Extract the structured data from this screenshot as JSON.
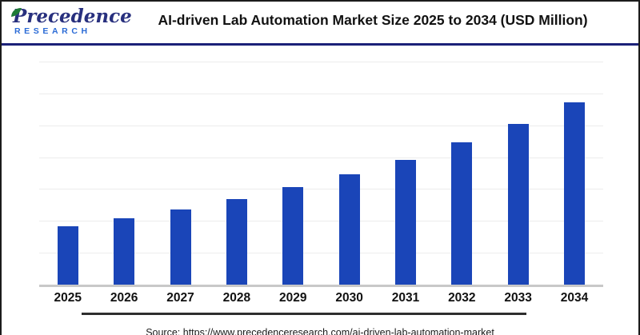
{
  "header": {
    "logo": {
      "brand_primary": "Precedence",
      "brand_secondary": "RESEARCH"
    },
    "title": "AI-driven Lab Automation Market Size 2025 to 2034 (USD Million)"
  },
  "footer": {
    "source_text": "Source: https://www.precedenceresearch.com/ai-driven-lab-automation-market"
  },
  "colors": {
    "bar": "#1a45b8",
    "brand_navy": "#28307e",
    "brand_blue": "#2b6bd6",
    "leaf_green": "#1e7a36",
    "header_rule_navy": "#1b2178",
    "gridline": "#ececec",
    "axis_line": "#c8c8c8"
  },
  "chart_data": {
    "type": "bar",
    "title": "AI-driven Lab Automation Market Size 2025 to 2034 (USD Million)",
    "unit": "USD Million",
    "categories": [
      "2025",
      "2026",
      "2027",
      "2028",
      "2029",
      "2030",
      "2031",
      "2032",
      "2033",
      "2034"
    ],
    "values": [
      3660,
      4170,
      4720,
      5380,
      6110,
      6920,
      7840,
      8920,
      10100,
      11440
    ],
    "xlabel": "",
    "ylabel": "",
    "ylim": [
      0,
      14000
    ],
    "gridline_step": 2000,
    "grid": "horizontal",
    "legend": "none",
    "y_tick_labels_visible": false,
    "bar_color": "#1a45b8",
    "note": "No data labels are printed on the chart; bar values estimated from pixel heights against gridlines (~13.4% year-over-year growth)."
  }
}
